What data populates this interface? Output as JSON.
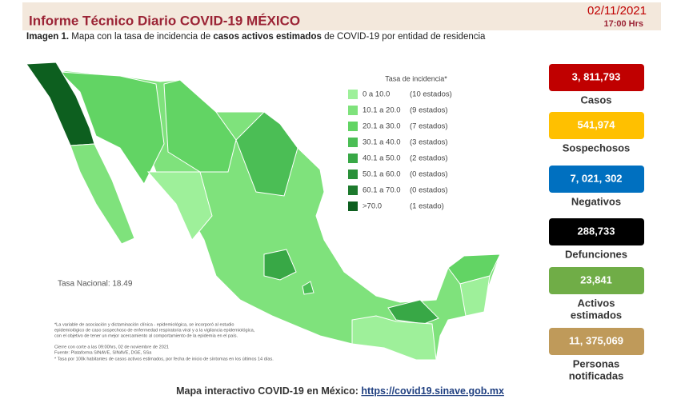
{
  "header": {
    "title": "Informe Técnico Diario COVID-19 MÉXICO",
    "date": "02/11/2021",
    "time": "17:00 Hrs"
  },
  "caption": {
    "label": "Imagen 1.",
    "parts": [
      "Mapa con la tasa de incidencia de ",
      "casos activos estimados",
      " de COVID-19 por entidad de residencia"
    ]
  },
  "legend": {
    "title": "Tasa de incidencia*",
    "items": [
      {
        "range": "0   a  10.0",
        "count": "(10 estados)",
        "color": "#9ef09a"
      },
      {
        "range": "10.1 a 20.0",
        "count": "(9 estados)",
        "color": "#7fe27c"
      },
      {
        "range": "20.1 a 30.0",
        "count": "(7 estados)",
        "color": "#62d464"
      },
      {
        "range": "30.1 a 40.0",
        "count": "(3 estados)",
        "color": "#4bbe55"
      },
      {
        "range": "40.1 a 50.0",
        "count": "(2 estados)",
        "color": "#38a846"
      },
      {
        "range": "50.1 a 60.0",
        "count": "(0 estados)",
        "color": "#2a9139"
      },
      {
        "range": "60.1 a 70.0",
        "count": "(0 estados)",
        "color": "#1d7a2d"
      },
      {
        "range": ">70.0",
        "count": "(1 estado)",
        "color": "#0d5f1f"
      }
    ]
  },
  "national_rate": "Tasa Nacional: 18.49",
  "notes": [
    "*La variable de asociación y dictaminación clínica - epidemiológica, se incorporó al estudio",
    "epidemiológico de caso sospechoso de enfermedad respiratoria viral y a la vigilancia epidemiológica,",
    "con el objetivo de tener un mejor acercamiento al comportamiento de la epidemia en el país.",
    "Cierre con corte a las 09:00hrs, 02 de noviembre de 2021",
    "Fuente: Plataforma SINAVE, SINAVE, DGE, SSa",
    "* Tasa por 100k habitantes de casos activos estimados, por fecha de inicio de síntomas en los últimos 14 días."
  ],
  "stats": [
    {
      "value": "3, 811,793",
      "labels": [
        "Casos"
      ],
      "color": "#c00000"
    },
    {
      "value": "541,974",
      "labels": [
        "Sospechosos"
      ],
      "color": "#ffc000"
    },
    {
      "value": "7, 021, 302",
      "labels": [
        "Negativos"
      ],
      "color": "#0070c0"
    },
    {
      "value": "288,733",
      "labels": [
        "Defunciones"
      ],
      "color": "#000000"
    },
    {
      "value": "23,841",
      "labels": [
        "Activos",
        "estimados"
      ],
      "color": "#70ad47"
    },
    {
      "value": "11, 375,069",
      "labels": [
        "Personas",
        "notificadas"
      ],
      "color": "#bf9a5a"
    }
  ],
  "footer": {
    "label": "Mapa interactivo COVID-19 en México: ",
    "link": "https://covid19.sinave.gob.mx"
  }
}
